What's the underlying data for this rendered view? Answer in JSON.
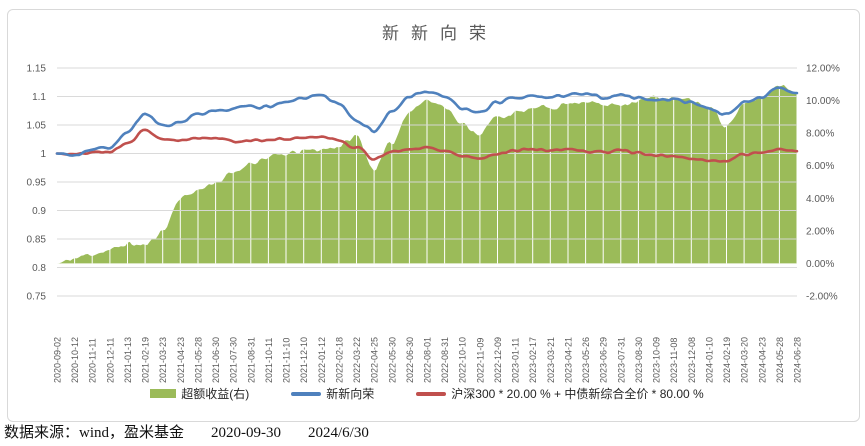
{
  "chart": {
    "footer": {
      "source": "数据来源：wind，盈米基金",
      "start_date": "2020-09-30",
      "end_date": "2024/6/30"
    },
    "frame_border_color": "#D9D9D9",
    "axis_text_color": "#595959",
    "gridline_color": "#D9D9D9"
  },
  "chart_data": {
    "type": "combo-area-line",
    "title": "新新向荣",
    "legend_position": "bottom",
    "grid": {
      "horizontal": true,
      "vertical_white_over_area": true
    },
    "x_tick_labels": [
      "2020-09-02",
      "2020-10-12",
      "2020-11-11",
      "2020-12-11",
      "2021-01-13",
      "2021-02-19",
      "2021-03-23",
      "2021-04-23",
      "2021-05-28",
      "2021-06-30",
      "2021-07-30",
      "2021-08-31",
      "2021-10-11",
      "2021-11-10",
      "2021-12-10",
      "2022-01-12",
      "2022-02-18",
      "2022-03-22",
      "2022-04-25",
      "2022-05-30",
      "2022-06-30",
      "2022-08-01",
      "2022-08-31",
      "2022-10-10",
      "2022-11-09",
      "2022-12-09",
      "2023-01-11",
      "2023-02-17",
      "2023-03-21",
      "2023-04-21",
      "2023-05-26",
      "2023-06-29",
      "2023-07-31",
      "2023-08-30",
      "2023-10-09",
      "2023-11-08",
      "2023-12-08",
      "2024-01-10",
      "2024-02-19",
      "2024-03-20",
      "2024-04-23",
      "2024-05-28",
      "2024-06-28"
    ],
    "left_axis": {
      "range": [
        0.75,
        1.15
      ],
      "ticks": [
        "1.15",
        "1.1",
        "1.05",
        "1",
        "0.95",
        "0.9",
        "0.85",
        "0.8",
        "0.75"
      ]
    },
    "right_axis": {
      "range": [
        -2,
        12
      ],
      "unit": "%",
      "ticks": [
        "12.00%",
        "10.00%",
        "8.00%",
        "6.00%",
        "4.00%",
        "2.00%",
        "0.00%",
        "-2.00%"
      ]
    },
    "series": [
      {
        "name": "超额收益(右)",
        "kind": "area",
        "axis": "right",
        "color": "#9BBB59",
        "values": [
          0.0,
          0.3,
          0.6,
          0.8,
          1.2,
          1.1,
          2.0,
          4.0,
          4.5,
          5.0,
          5.5,
          6.2,
          6.5,
          6.7,
          6.9,
          7.0,
          7.2,
          7.8,
          5.8,
          7.4,
          9.4,
          10.0,
          9.7,
          8.5,
          8.0,
          9.0,
          9.2,
          9.5,
          9.6,
          9.8,
          10.0,
          9.7,
          9.8,
          10.0,
          10.2,
          10.1,
          10.0,
          9.6,
          8.5,
          9.7,
          10.2,
          11.0,
          10.5
        ]
      },
      {
        "name": "新新向荣",
        "kind": "line",
        "axis": "left",
        "color": "#4F81BD",
        "values": [
          1.0,
          0.997,
          1.008,
          1.012,
          1.035,
          1.072,
          1.048,
          1.056,
          1.068,
          1.072,
          1.078,
          1.083,
          1.082,
          1.088,
          1.098,
          1.1,
          1.087,
          1.06,
          1.04,
          1.072,
          1.1,
          1.108,
          1.1,
          1.077,
          1.072,
          1.09,
          1.096,
          1.1,
          1.098,
          1.103,
          1.103,
          1.098,
          1.103,
          1.098,
          1.094,
          1.095,
          1.09,
          1.08,
          1.068,
          1.09,
          1.1,
          1.113,
          1.106
        ]
      },
      {
        "name": "沪深300 * 20.00 % + 中债新综合全价 * 80.00 %",
        "kind": "line",
        "axis": "left",
        "color": "#C0504D",
        "values": [
          1.0,
          0.998,
          1.002,
          1.004,
          1.018,
          1.04,
          1.025,
          1.023,
          1.028,
          1.026,
          1.021,
          1.024,
          1.023,
          1.026,
          1.028,
          1.03,
          1.023,
          1.01,
          0.992,
          1.002,
          1.008,
          1.01,
          1.006,
          0.996,
          0.992,
          1.0,
          1.005,
          1.008,
          1.005,
          1.008,
          1.004,
          1.002,
          1.007,
          1.0,
          0.996,
          0.995,
          0.992,
          0.988,
          0.986,
          1.0,
          1.002,
          1.008,
          1.004
        ]
      }
    ]
  }
}
